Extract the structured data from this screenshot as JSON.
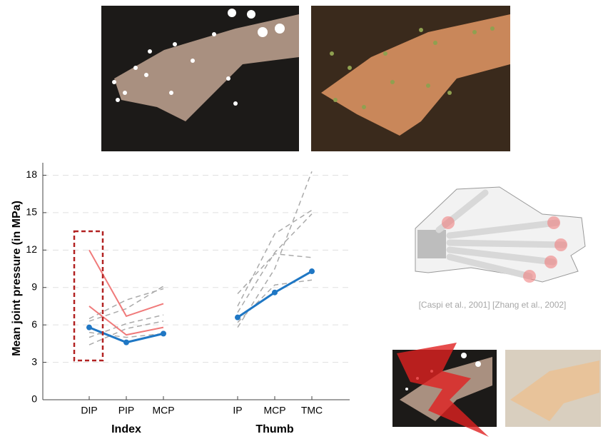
{
  "chart_data": {
    "type": "line",
    "y_label": "Mean joint pressure (in MPa)",
    "categories": [
      "DIP",
      "PIP",
      "MCP",
      null,
      "IP",
      "MCP",
      "TMC"
    ],
    "groups": [
      {
        "name": "Index",
        "span": [
          0,
          2
        ]
      },
      {
        "name": "Thumb",
        "span": [
          4,
          6
        ]
      }
    ],
    "ylim": [
      0,
      19
    ],
    "yticks": [
      0,
      3,
      6,
      9,
      12,
      15,
      18
    ],
    "grid": true,
    "series": [
      {
        "color": "#aaaaaa",
        "dashed": true,
        "values": [
          4.4,
          5.7,
          6.3,
          null,
          8.5,
          11.7,
          11.4
        ]
      },
      {
        "color": "#aaaaaa",
        "dashed": true,
        "values": [
          5.0,
          6.1,
          6.8,
          null,
          7.5,
          13.3,
          15.2
        ]
      },
      {
        "color": "#aaaaaa",
        "dashed": true,
        "values": [
          6.3,
          7.3,
          9.1,
          null,
          5.8,
          10.5,
          18.3
        ]
      },
      {
        "color": "#aaaaaa",
        "dashed": true,
        "values": [
          6.5,
          8.0,
          8.9,
          null,
          7.0,
          11.8,
          14.9
        ]
      },
      {
        "color": "#aaaaaa",
        "dashed": true,
        "values": [
          5.4,
          5.0,
          5.3,
          null,
          6.2,
          9.2,
          9.6
        ]
      },
      {
        "color": "#f07a7a",
        "values": [
          12.0,
          6.7,
          7.7,
          null,
          null,
          null,
          null
        ]
      },
      {
        "color": "#f07a7a",
        "values": [
          7.5,
          5.2,
          5.8,
          null,
          null,
          null,
          null
        ]
      },
      {
        "color": "#1f77c4",
        "markers": true,
        "values": [
          5.8,
          4.6,
          5.3,
          null,
          6.6,
          8.6,
          10.3
        ]
      }
    ]
  },
  "reference": "[Caspi et al., 2001] [Zhang et al., 2002]"
}
